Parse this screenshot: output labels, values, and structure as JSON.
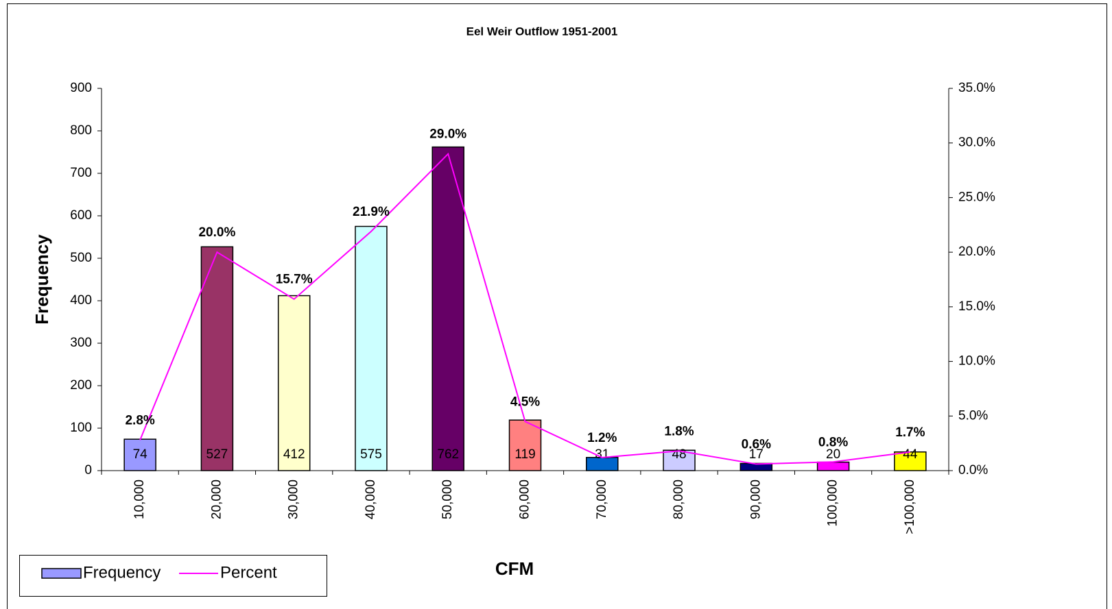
{
  "chart_data": {
    "type": "bar",
    "title": "Eel Weir Outflow 1951-2001",
    "xlabel": "CFM",
    "ylabel": "Frequency",
    "categories": [
      "10,000",
      "20,000",
      "30,000",
      "40,000",
      "50,000",
      "60,000",
      "70,000",
      "80,000",
      "90,000",
      "100,000",
      ">100,000"
    ],
    "series": [
      {
        "name": "Frequency",
        "type": "bar",
        "color": "#9999ff",
        "colors": [
          "#9999ff",
          "#993366",
          "#ffffcc",
          "#ccffff",
          "#660066",
          "#ff8080",
          "#0066cc",
          "#ccccff",
          "#000080",
          "#ff00ff",
          "#ffff00"
        ],
        "values": [
          74,
          527,
          412,
          575,
          762,
          119,
          31,
          48,
          17,
          20,
          44
        ]
      },
      {
        "name": "Percent",
        "type": "line",
        "axis": "y2",
        "color": "#ff00ff",
        "values": [
          2.8,
          20.0,
          15.7,
          21.9,
          29.0,
          4.5,
          1.2,
          1.8,
          0.6,
          0.8,
          1.7
        ],
        "value_labels": [
          "2.8%",
          "20.0%",
          "15.7%",
          "21.9%",
          "29.0%",
          "4.5%",
          "1.2%",
          "1.8%",
          "0.6%",
          "0.8%",
          "1.7%"
        ]
      }
    ],
    "ylim": [
      0,
      900
    ],
    "yticks": [
      0,
      100,
      200,
      300,
      400,
      500,
      600,
      700,
      800,
      900
    ],
    "y2lim": [
      0,
      35
    ],
    "y2ticks": [
      {
        "value": 0,
        "label": "0.0%"
      },
      {
        "value": 5,
        "label": "5.0%"
      },
      {
        "value": 10,
        "label": "10.0%"
      },
      {
        "value": 15,
        "label": "15.0%"
      },
      {
        "value": 20,
        "label": "20.0%"
      },
      {
        "value": 25,
        "label": "25.0%"
      },
      {
        "value": 30,
        "label": "30.0%"
      },
      {
        "value": 35,
        "label": "35.0%"
      }
    ],
    "legend": "bottom-left",
    "grid": false
  }
}
